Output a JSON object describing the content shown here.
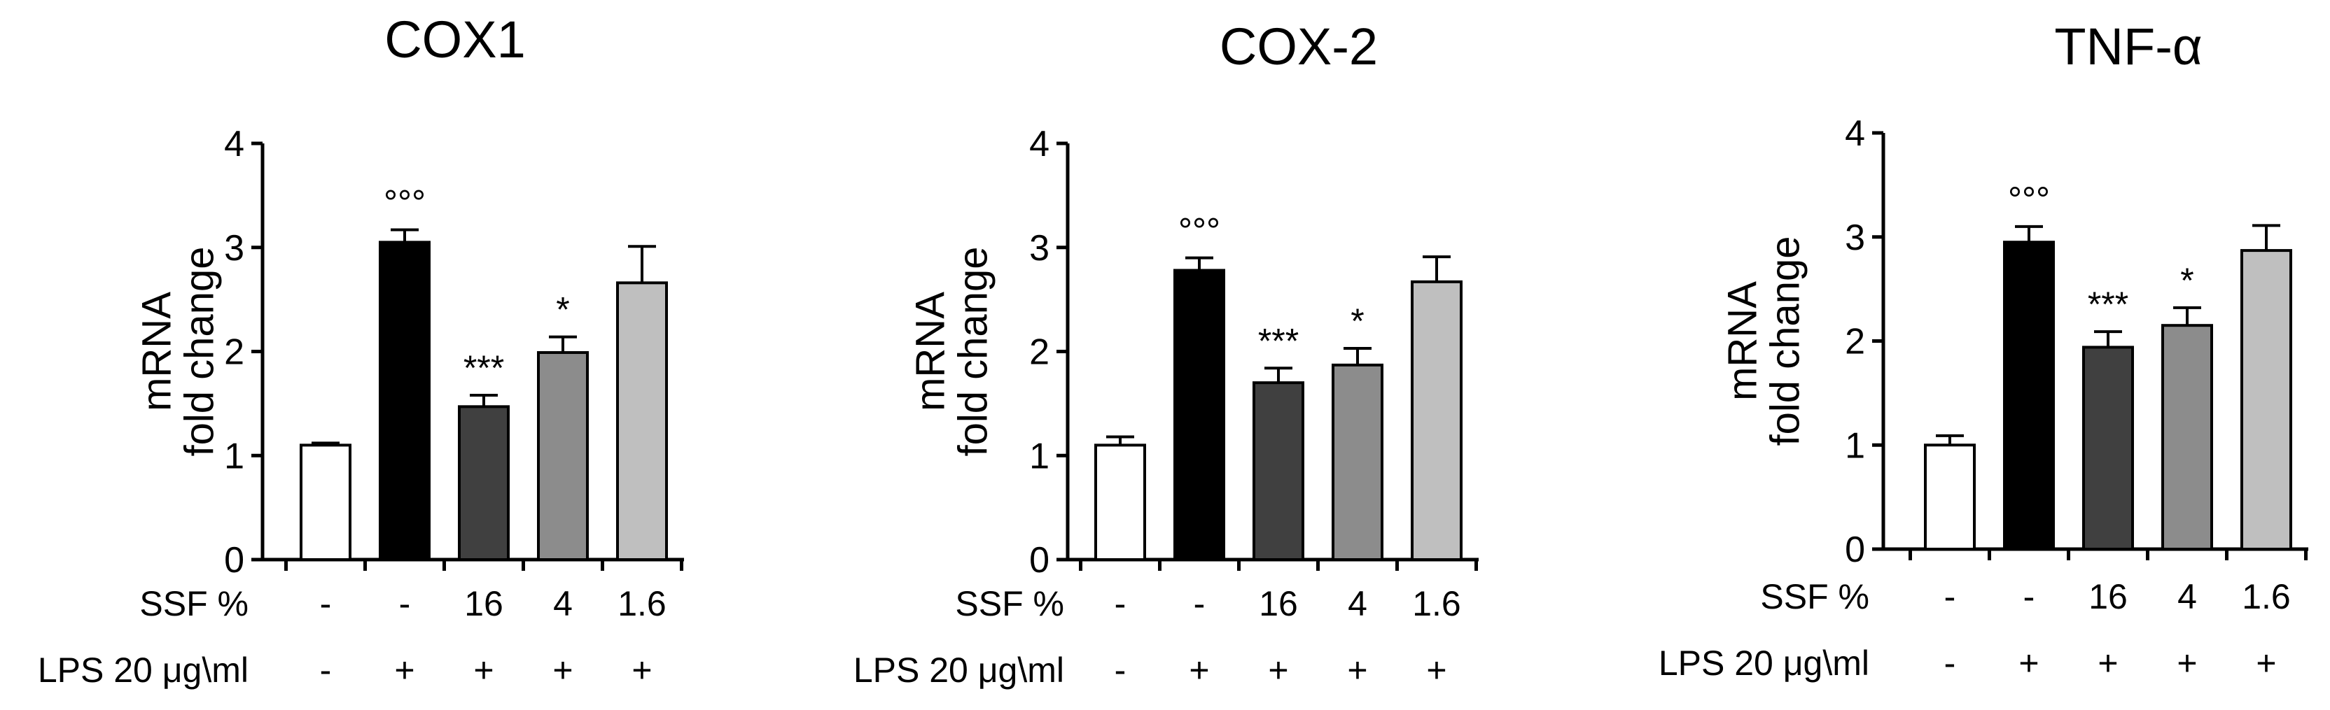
{
  "chart_data": [
    {
      "type": "bar",
      "title": "COX1",
      "ylabel": [
        "mRNA",
        "fold change"
      ],
      "ylim": [
        0,
        4
      ],
      "yticks": [
        0,
        1,
        2,
        3,
        4
      ],
      "values": [
        1.1,
        3.05,
        1.47,
        1.99,
        2.66
      ],
      "errors": [
        0.02,
        0.12,
        0.11,
        0.15,
        0.35
      ],
      "annotations": [
        "",
        "°°°",
        "***",
        "*",
        ""
      ],
      "bar_colors": [
        "#ffffff",
        "#000000",
        "#404040",
        "#8c8c8c",
        "#bfbfbf"
      ],
      "rows": [
        {
          "label": "SSF %",
          "values": [
            "-",
            "-",
            "16",
            "4",
            "1.6"
          ]
        },
        {
          "label": "LPS 20 μg\\ml",
          "values": [
            "-",
            "+",
            "+",
            "+",
            "+"
          ]
        }
      ]
    },
    {
      "type": "bar",
      "title": "COX-2",
      "ylabel": [
        "mRNA",
        "fold change"
      ],
      "ylim": [
        0,
        4
      ],
      "yticks": [
        0,
        1,
        2,
        3,
        4
      ],
      "values": [
        1.1,
        2.78,
        1.7,
        1.87,
        2.67
      ],
      "errors": [
        0.08,
        0.12,
        0.14,
        0.16,
        0.24
      ],
      "annotations": [
        "",
        "°°°",
        "***",
        "*",
        ""
      ],
      "bar_colors": [
        "#ffffff",
        "#000000",
        "#404040",
        "#8c8c8c",
        "#bfbfbf"
      ],
      "rows": [
        {
          "label": "SSF %",
          "values": [
            "-",
            "-",
            "16",
            "4",
            "1.6"
          ]
        },
        {
          "label": "LPS 20 μg\\ml",
          "values": [
            "-",
            "+",
            "+",
            "+",
            "+"
          ]
        }
      ]
    },
    {
      "type": "bar",
      "title": "TNF-α",
      "ylabel": [
        "mRNA",
        "fold change"
      ],
      "ylim": [
        0,
        4
      ],
      "yticks": [
        0,
        1,
        2,
        3,
        4
      ],
      "values": [
        1.0,
        2.95,
        1.94,
        2.15,
        2.87
      ],
      "errors": [
        0.09,
        0.15,
        0.15,
        0.17,
        0.24
      ],
      "annotations": [
        "",
        "°°°",
        "***",
        "*",
        ""
      ],
      "bar_colors": [
        "#ffffff",
        "#000000",
        "#404040",
        "#8c8c8c",
        "#bfbfbf"
      ],
      "rows": [
        {
          "label": "SSF %",
          "values": [
            "-",
            "-",
            "16",
            "4",
            "1.6"
          ]
        },
        {
          "label": "LPS 20 μg\\ml",
          "values": [
            "-",
            "+",
            "+",
            "+",
            "+"
          ]
        }
      ]
    }
  ]
}
